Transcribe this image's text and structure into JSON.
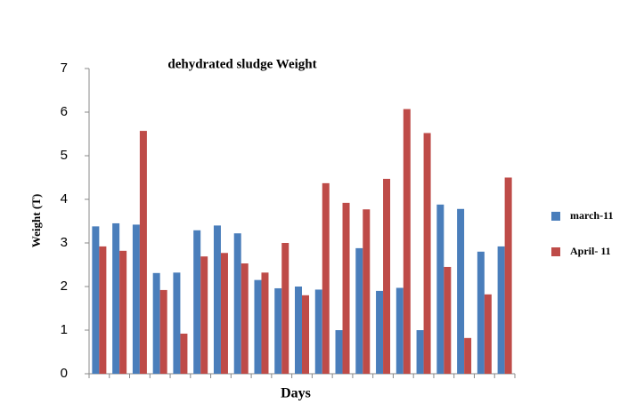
{
  "chart_data": {
    "type": "bar",
    "title": "dehydrated sludge Weight",
    "x_label": "Days",
    "y_label": "Weight (T)",
    "categories": [
      null,
      null,
      null,
      null,
      null,
      null,
      null,
      null,
      null,
      null,
      null,
      null,
      null,
      null,
      null,
      null,
      null,
      null,
      null,
      null,
      null
    ],
    "series": [
      {
        "name": "march-11",
        "color": "#4a7ebb",
        "values": [
          3.38,
          3.45,
          3.42,
          2.31,
          2.32,
          3.29,
          3.4,
          3.22,
          2.15,
          1.96,
          2.0,
          1.93,
          1.0,
          2.88,
          1.9,
          1.97,
          1.0,
          3.88,
          3.78,
          2.8,
          2.92
        ]
      },
      {
        "name": "April- 11",
        "color": "#be4b48",
        "values": [
          2.92,
          2.82,
          5.57,
          1.92,
          0.92,
          2.69,
          2.77,
          2.53,
          2.32,
          3.0,
          1.8,
          4.37,
          3.92,
          3.77,
          4.47,
          6.07,
          5.52,
          2.45,
          0.82,
          1.82,
          4.5
        ]
      }
    ],
    "ylim": [
      0,
      7
    ],
    "yticks": [
      0,
      1,
      2,
      3,
      4,
      5,
      6,
      7
    ],
    "grid": false,
    "legend": "right"
  }
}
